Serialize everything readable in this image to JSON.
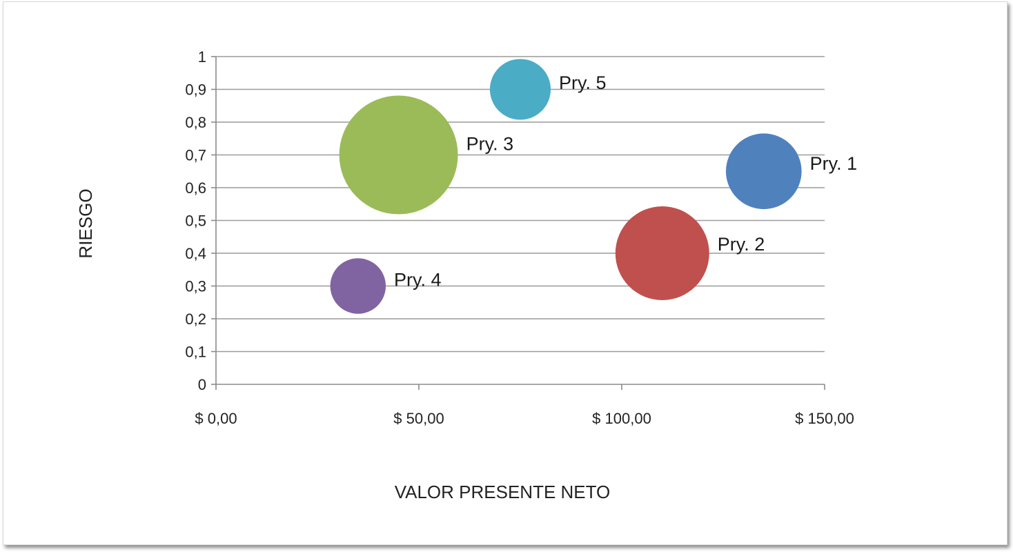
{
  "chart_data": {
    "type": "bubble",
    "xlabel": "VALOR PRESENTE NETO",
    "ylabel": "RIESGO",
    "xlim": [
      0,
      150
    ],
    "ylim": [
      0,
      1
    ],
    "x_ticks": [
      0,
      50,
      100,
      150
    ],
    "x_tick_labels": [
      "$ 0,00",
      "$ 50,00",
      "$ 100,00",
      "$ 150,00"
    ],
    "y_ticks": [
      0,
      0.1,
      0.2,
      0.3,
      0.4,
      0.5,
      0.6,
      0.7,
      0.8,
      0.9,
      1
    ],
    "y_tick_labels": [
      "0",
      "0,1",
      "0,2",
      "0,3",
      "0,4",
      "0,5",
      "0,6",
      "0,7",
      "0,8",
      "0,9",
      "1"
    ],
    "grid": "horizontal",
    "legend": "none",
    "points": [
      {
        "label": "Pry. 1",
        "x": 135,
        "y": 0.65,
        "size": 6.5,
        "color": "#4f81bd"
      },
      {
        "label": "Pry. 2",
        "x": 110,
        "y": 0.4,
        "size": 10,
        "color": "#c0504d"
      },
      {
        "label": "Pry. 3",
        "x": 45,
        "y": 0.7,
        "size": 16,
        "color": "#9bbb59"
      },
      {
        "label": "Pry. 4",
        "x": 35,
        "y": 0.3,
        "size": 3.5,
        "color": "#8064a2"
      },
      {
        "label": "Pry. 5",
        "x": 75,
        "y": 0.9,
        "size": 4.2,
        "color": "#4bacc6"
      }
    ]
  }
}
